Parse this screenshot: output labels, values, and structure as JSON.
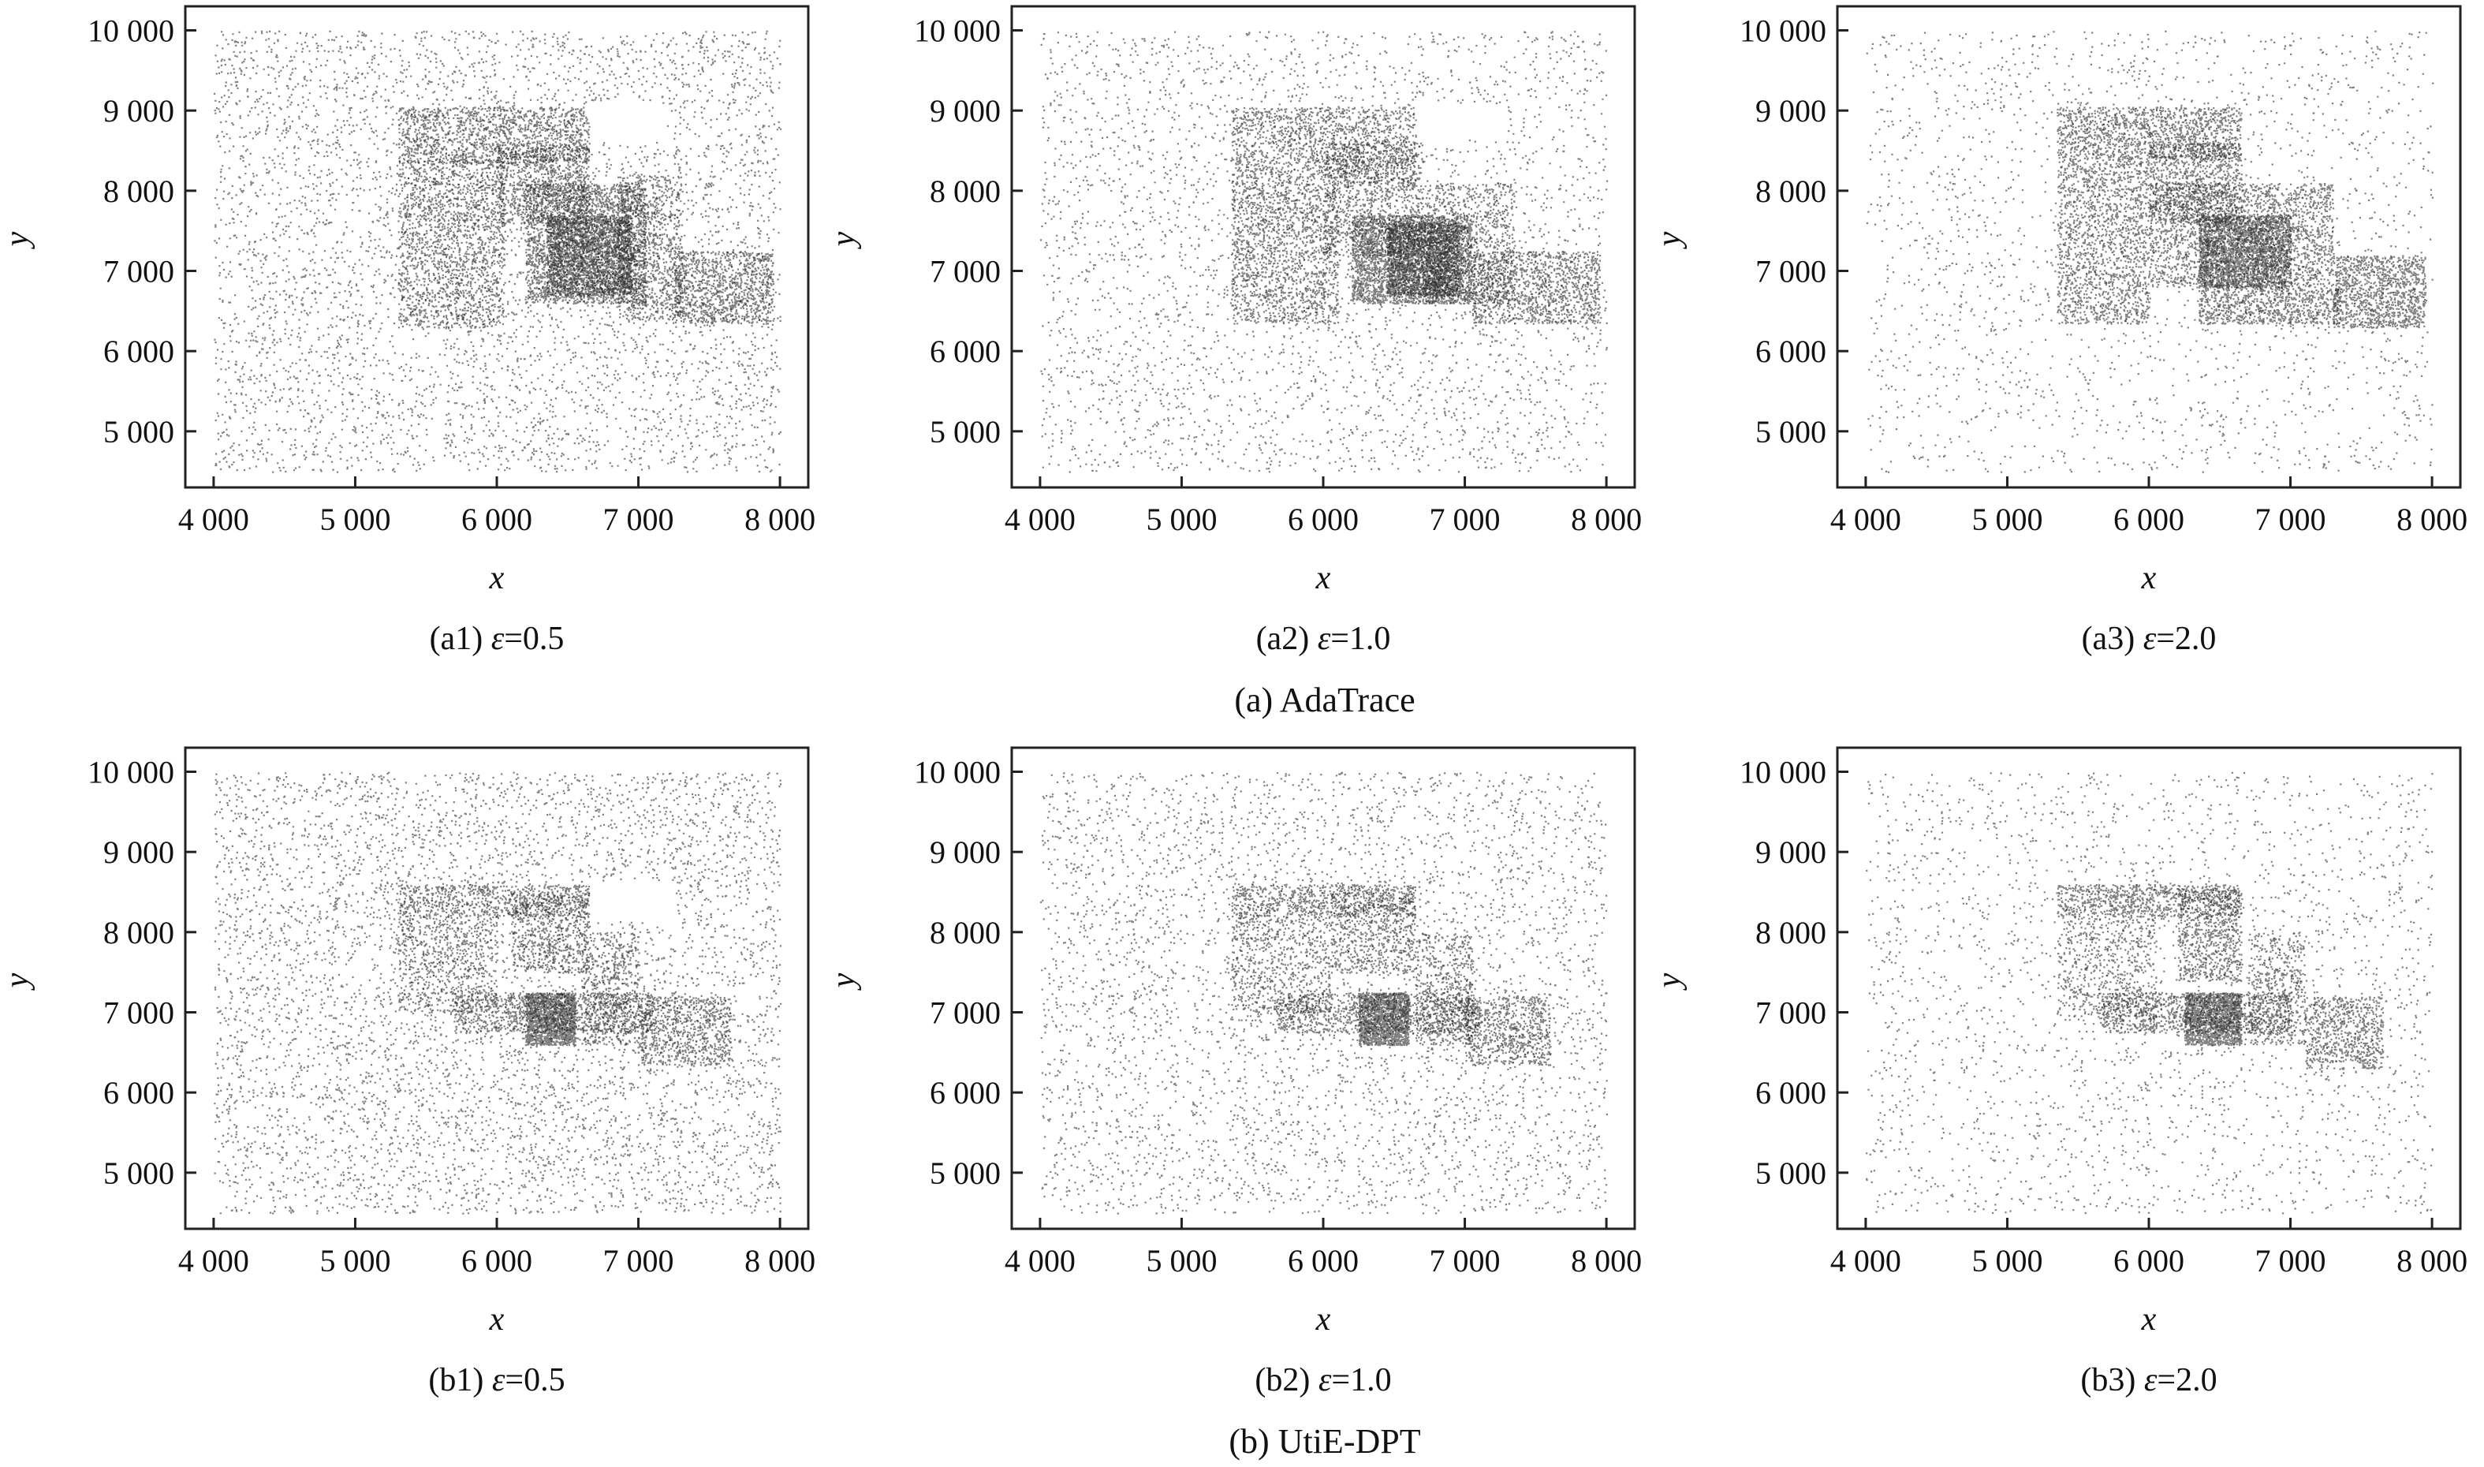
{
  "figure": {
    "groups": [
      {
        "caption": "(a) AdaTrace"
      },
      {
        "caption": "(b) UtiE-DPT"
      }
    ]
  },
  "chart_data": [
    {
      "type": "scatter",
      "method": "AdaTrace",
      "panel": "a1",
      "caption_prefix": "(a1) ",
      "epsilon_symbol": "ε",
      "epsilon_value": "=0.5",
      "xlabel": "x",
      "ylabel": "y",
      "xlim": [
        3800,
        8200
      ],
      "ylim": [
        4300,
        10300
      ],
      "xticks": [
        4000,
        5000,
        6000,
        7000,
        8000
      ],
      "xtick_labels": [
        "4 000",
        "5 000",
        "6 000",
        "7 000",
        "8 000"
      ],
      "yticks": [
        5000,
        6000,
        7000,
        8000,
        9000,
        10000
      ],
      "ytick_labels": [
        "5 000",
        "6 000",
        "7 000",
        "8 000",
        "9 000",
        "10 000"
      ],
      "background": {
        "x": [
          4000,
          8000
        ],
        "y": [
          4500,
          10000
        ],
        "points": 5200
      },
      "dense_regions": [
        {
          "x": [
            5300,
            6650
          ],
          "y": [
            8350,
            9050
          ],
          "points": 1300
        },
        {
          "x": [
            5300,
            6050
          ],
          "y": [
            6300,
            8400
          ],
          "points": 1700
        },
        {
          "x": [
            6000,
            6650
          ],
          "y": [
            7600,
            8600
          ],
          "points": 900
        },
        {
          "x": [
            6200,
            7050
          ],
          "y": [
            6600,
            8100
          ],
          "points": 2600
        },
        {
          "x": [
            6350,
            6950
          ],
          "y": [
            6700,
            7700
          ],
          "points": 2200
        },
        {
          "x": [
            6850,
            7300
          ],
          "y": [
            6400,
            8200
          ],
          "points": 900
        },
        {
          "x": [
            7250,
            7950
          ],
          "y": [
            6350,
            7250
          ],
          "points": 1100
        }
      ],
      "empty_regions": [
        {
          "x": [
            6650,
            7200
          ],
          "y": [
            8650,
            9100
          ]
        }
      ]
    },
    {
      "type": "scatter",
      "method": "AdaTrace",
      "panel": "a2",
      "caption_prefix": "(a2) ",
      "epsilon_symbol": "ε",
      "epsilon_value": "=1.0",
      "xlabel": "x",
      "ylabel": "y",
      "xlim": [
        3800,
        8200
      ],
      "ylim": [
        4300,
        10300
      ],
      "xticks": [
        4000,
        5000,
        6000,
        7000,
        8000
      ],
      "xtick_labels": [
        "4 000",
        "5 000",
        "6 000",
        "7 000",
        "8 000"
      ],
      "yticks": [
        5000,
        6000,
        7000,
        8000,
        9000,
        10000
      ],
      "ytick_labels": [
        "5 000",
        "6 000",
        "7 000",
        "8 000",
        "9 000",
        "10 000"
      ],
      "background": {
        "x": [
          4000,
          8000
        ],
        "y": [
          4500,
          10000
        ],
        "points": 3500
      },
      "dense_regions": [
        {
          "x": [
            5350,
            6650
          ],
          "y": [
            8100,
            9050
          ],
          "points": 1400
        },
        {
          "x": [
            5350,
            6100
          ],
          "y": [
            6350,
            8100
          ],
          "points": 1500
        },
        {
          "x": [
            6000,
            6700
          ],
          "y": [
            7200,
            8600
          ],
          "points": 1000
        },
        {
          "x": [
            6200,
            7050
          ],
          "y": [
            6600,
            7700
          ],
          "points": 2800
        },
        {
          "x": [
            6450,
            6950
          ],
          "y": [
            6700,
            7600
          ],
          "points": 1800
        },
        {
          "x": [
            6700,
            7350
          ],
          "y": [
            6600,
            8100
          ],
          "points": 900
        },
        {
          "x": [
            7050,
            7950
          ],
          "y": [
            6350,
            7250
          ],
          "points": 1200
        }
      ],
      "empty_regions": [
        {
          "x": [
            6650,
            7300
          ],
          "y": [
            8650,
            9100
          ]
        }
      ]
    },
    {
      "type": "scatter",
      "method": "AdaTrace",
      "panel": "a3",
      "caption_prefix": "(a3) ",
      "epsilon_symbol": "ε",
      "epsilon_value": "=2.0",
      "xlabel": "x",
      "ylabel": "y",
      "xlim": [
        3800,
        8200
      ],
      "ylim": [
        4300,
        10300
      ],
      "xticks": [
        4000,
        5000,
        6000,
        7000,
        8000
      ],
      "xtick_labels": [
        "4 000",
        "5 000",
        "6 000",
        "7 000",
        "8 000"
      ],
      "yticks": [
        5000,
        6000,
        7000,
        8000,
        9000,
        10000
      ],
      "ytick_labels": [
        "5 000",
        "6 000",
        "7 000",
        "8 000",
        "9 000",
        "10 000"
      ],
      "background": {
        "x": [
          4000,
          8000
        ],
        "y": [
          4500,
          10000
        ],
        "points": 2200
      },
      "dense_regions": [
        {
          "x": [
            5350,
            6650
          ],
          "y": [
            8400,
            9050
          ],
          "points": 1300
        },
        {
          "x": [
            5350,
            6000
          ],
          "y": [
            6350,
            8400
          ],
          "points": 1500
        },
        {
          "x": [
            6000,
            6650
          ],
          "y": [
            7600,
            8600
          ],
          "points": 900
        },
        {
          "x": [
            6000,
            7300
          ],
          "y": [
            6800,
            8100
          ],
          "points": 2200
        },
        {
          "x": [
            6350,
            7000
          ],
          "y": [
            6800,
            7700
          ],
          "points": 2400
        },
        {
          "x": [
            6350,
            7350
          ],
          "y": [
            6350,
            6800
          ],
          "points": 800
        },
        {
          "x": [
            7300,
            7950
          ],
          "y": [
            6300,
            7200
          ],
          "points": 1100
        }
      ],
      "empty_regions": []
    },
    {
      "type": "scatter",
      "method": "UtiE-DPT",
      "panel": "b1",
      "caption_prefix": "(b1) ",
      "epsilon_symbol": "ε",
      "epsilon_value": "=0.5",
      "xlabel": "x",
      "ylabel": "y",
      "xlim": [
        3800,
        8200
      ],
      "ylim": [
        4300,
        10300
      ],
      "xticks": [
        4000,
        5000,
        6000,
        7000,
        8000
      ],
      "xtick_labels": [
        "4 000",
        "5 000",
        "6 000",
        "7 000",
        "8 000"
      ],
      "yticks": [
        5000,
        6000,
        7000,
        8000,
        9000,
        10000
      ],
      "ytick_labels": [
        "5 000",
        "6 000",
        "7 000",
        "8 000",
        "9 000",
        "10 000"
      ],
      "background": {
        "x": [
          4000,
          8000
        ],
        "y": [
          4500,
          10000
        ],
        "points": 6000
      },
      "dense_regions": [
        {
          "x": [
            5300,
            6650
          ],
          "y": [
            8200,
            8600
          ],
          "points": 700
        },
        {
          "x": [
            5300,
            6000
          ],
          "y": [
            7000,
            8200
          ],
          "points": 600
        },
        {
          "x": [
            6100,
            6650
          ],
          "y": [
            7500,
            8500
          ],
          "points": 600
        },
        {
          "x": [
            5700,
            7100
          ],
          "y": [
            6750,
            7250
          ],
          "points": 1000
        },
        {
          "x": [
            6200,
            6550
          ],
          "y": [
            6600,
            7250
          ],
          "points": 1500
        },
        {
          "x": [
            6600,
            7000
          ],
          "y": [
            6600,
            8000
          ],
          "points": 500
        },
        {
          "x": [
            7000,
            7650
          ],
          "y": [
            6350,
            7200
          ],
          "points": 700
        }
      ],
      "empty_regions": [
        {
          "x": [
            6650,
            7250
          ],
          "y": [
            8150,
            8650
          ]
        }
      ]
    },
    {
      "type": "scatter",
      "method": "UtiE-DPT",
      "panel": "b2",
      "caption_prefix": "(b2) ",
      "epsilon_symbol": "ε",
      "epsilon_value": "=1.0",
      "xlabel": "x",
      "ylabel": "y",
      "xlim": [
        3800,
        8200
      ],
      "ylim": [
        4300,
        10300
      ],
      "xticks": [
        4000,
        5000,
        6000,
        7000,
        8000
      ],
      "xtick_labels": [
        "4 000",
        "5 000",
        "6 000",
        "7 000",
        "8 000"
      ],
      "yticks": [
        5000,
        6000,
        7000,
        8000,
        9000,
        10000
      ],
      "ytick_labels": [
        "5 000",
        "6 000",
        "7 000",
        "8 000",
        "9 000",
        "10 000"
      ],
      "background": {
        "x": [
          4000,
          8000
        ],
        "y": [
          4500,
          10000
        ],
        "points": 4200
      },
      "dense_regions": [
        {
          "x": [
            5350,
            6650
          ],
          "y": [
            8200,
            8600
          ],
          "points": 700
        },
        {
          "x": [
            5350,
            6050
          ],
          "y": [
            7000,
            8200
          ],
          "points": 600
        },
        {
          "x": [
            6050,
            6650
          ],
          "y": [
            7500,
            8500
          ],
          "points": 600
        },
        {
          "x": [
            5650,
            7100
          ],
          "y": [
            6750,
            7250
          ],
          "points": 1000
        },
        {
          "x": [
            6250,
            6600
          ],
          "y": [
            6600,
            7250
          ],
          "points": 1500
        },
        {
          "x": [
            6650,
            7050
          ],
          "y": [
            6600,
            8000
          ],
          "points": 500
        },
        {
          "x": [
            7000,
            7600
          ],
          "y": [
            6350,
            7200
          ],
          "points": 700
        }
      ],
      "empty_regions": []
    },
    {
      "type": "scatter",
      "method": "UtiE-DPT",
      "panel": "b3",
      "caption_prefix": "(b3) ",
      "epsilon_symbol": "ε",
      "epsilon_value": "=2.0",
      "xlabel": "x",
      "ylabel": "y",
      "xlim": [
        3800,
        8200
      ],
      "ylim": [
        4300,
        10300
      ],
      "xticks": [
        4000,
        5000,
        6000,
        7000,
        8000
      ],
      "xtick_labels": [
        "4 000",
        "5 000",
        "6 000",
        "7 000",
        "8 000"
      ],
      "yticks": [
        5000,
        6000,
        7000,
        8000,
        9000,
        10000
      ],
      "ytick_labels": [
        "5 000",
        "6 000",
        "7 000",
        "8 000",
        "9 000",
        "10 000"
      ],
      "background": {
        "x": [
          4000,
          8000
        ],
        "y": [
          4500,
          10000
        ],
        "points": 2500
      },
      "dense_regions": [
        {
          "x": [
            5350,
            6650
          ],
          "y": [
            8200,
            8600
          ],
          "points": 800
        },
        {
          "x": [
            5350,
            6050
          ],
          "y": [
            6950,
            8200
          ],
          "points": 600
        },
        {
          "x": [
            6200,
            6650
          ],
          "y": [
            7400,
            8550
          ],
          "points": 700
        },
        {
          "x": [
            5650,
            7000
          ],
          "y": [
            6750,
            7250
          ],
          "points": 1000
        },
        {
          "x": [
            6250,
            6650
          ],
          "y": [
            6600,
            7250
          ],
          "points": 1500
        },
        {
          "x": [
            6700,
            7100
          ],
          "y": [
            6600,
            8000
          ],
          "points": 500
        },
        {
          "x": [
            7100,
            7650
          ],
          "y": [
            6300,
            7200
          ],
          "points": 700
        }
      ],
      "empty_regions": []
    }
  ]
}
